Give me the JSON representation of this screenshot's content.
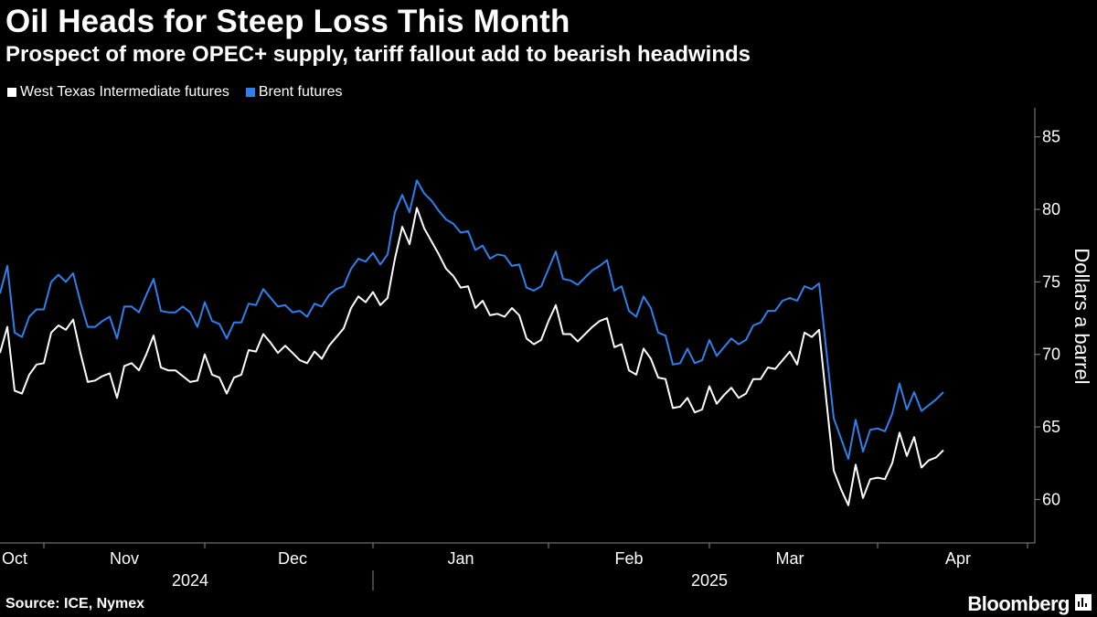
{
  "header": {
    "title": "Oil Heads for Steep Loss This Month",
    "subtitle": "Prospect of more OPEC+ supply, tariff fallout add to bearish headwinds"
  },
  "footer": {
    "source": "Source: ICE, Nymex",
    "brand": "Bloomberg"
  },
  "colors": {
    "background": "#000000",
    "wti": "#ffffff",
    "brent": "#2f80ed",
    "axis": "#888888"
  },
  "chart_data": {
    "type": "line",
    "title": "Oil Heads for Steep Loss This Month",
    "subtitle": "Prospect of more OPEC+ supply, tariff fallout add to bearish headwinds",
    "ylabel": "Dollars a barrel",
    "xlabel": "",
    "ylim": [
      57,
      87
    ],
    "yticks": [
      60,
      65,
      70,
      75,
      80,
      85
    ],
    "ytick_labels": [
      "60",
      "65",
      "70",
      "75",
      "80",
      "85"
    ],
    "y_axis_position": "right",
    "grid": false,
    "legend": "top-left",
    "xlim": [
      0,
      139
    ],
    "month_labels": [
      {
        "label": "Oct",
        "x": 2
      },
      {
        "label": "Nov",
        "x": 17
      },
      {
        "label": "Dec",
        "x": 40
      },
      {
        "label": "Jan",
        "x": 63
      },
      {
        "label": "Feb",
        "x": 86
      },
      {
        "label": "Mar",
        "x": 108
      },
      {
        "label": "Apr",
        "x": 131
      }
    ],
    "month_ticks": [
      6,
      28,
      51,
      75,
      97,
      120,
      141
    ],
    "year_labels": [
      {
        "label": "2024",
        "x": 26
      },
      {
        "label": "2025",
        "x": 97
      }
    ],
    "year_divider": 51,
    "series": [
      {
        "name": "West Texas Intermediate futures",
        "color": "#ffffff",
        "values": [
          70.1,
          71.9,
          67.5,
          67.3,
          68.6,
          69.3,
          69.4,
          71.5,
          72.0,
          71.7,
          72.4,
          70.1,
          68.1,
          68.2,
          68.5,
          68.7,
          67.0,
          69.2,
          69.4,
          68.9,
          70.0,
          71.3,
          69.1,
          68.9,
          68.9,
          68.5,
          68.1,
          68.2,
          70.0,
          68.6,
          68.4,
          67.3,
          68.4,
          68.6,
          70.3,
          70.2,
          71.4,
          70.8,
          70.1,
          70.6,
          70.1,
          69.6,
          69.4,
          70.2,
          69.7,
          70.6,
          71.2,
          71.8,
          73.2,
          74.0,
          73.6,
          74.3,
          73.4,
          73.9,
          76.6,
          78.8,
          77.6,
          80.1,
          78.7,
          77.8,
          76.9,
          75.9,
          75.4,
          74.6,
          74.7,
          73.2,
          73.7,
          72.7,
          72.8,
          72.6,
          73.2,
          72.7,
          71.1,
          70.7,
          71.0,
          72.3,
          73.4,
          71.4,
          71.4,
          70.9,
          71.4,
          71.9,
          72.3,
          72.5,
          70.5,
          70.7,
          68.9,
          68.6,
          70.4,
          69.7,
          68.4,
          68.3,
          66.3,
          66.4,
          67.0,
          66.0,
          66.2,
          67.8,
          66.6,
          67.2,
          67.7,
          67.0,
          67.3,
          68.3,
          68.3,
          69.1,
          69.0,
          69.6,
          70.2,
          69.3,
          71.5,
          71.2,
          71.7,
          66.8,
          62.0,
          60.7,
          59.6,
          62.4,
          60.1,
          61.4,
          61.5,
          61.4,
          62.5,
          64.6,
          63.0,
          64.3,
          62.2,
          62.7,
          62.9,
          63.4
        ]
      },
      {
        "name": "Brent futures",
        "color": "#2f80ed",
        "values": [
          74.2,
          76.1,
          71.5,
          71.2,
          72.6,
          73.1,
          73.1,
          75.0,
          75.5,
          75.0,
          75.6,
          73.6,
          71.9,
          71.9,
          72.3,
          72.6,
          71.1,
          73.3,
          73.3,
          72.9,
          74.1,
          75.2,
          73.0,
          72.9,
          72.9,
          73.3,
          72.9,
          71.9,
          73.6,
          72.3,
          72.1,
          71.1,
          72.2,
          72.2,
          73.5,
          73.4,
          74.5,
          73.9,
          73.3,
          73.4,
          72.9,
          73.0,
          72.6,
          73.5,
          73.3,
          74.1,
          74.5,
          74.7,
          75.9,
          76.6,
          76.4,
          77.0,
          76.2,
          76.9,
          79.8,
          81.0,
          79.8,
          82.0,
          81.1,
          80.6,
          79.9,
          79.3,
          79.0,
          78.4,
          78.5,
          77.2,
          77.5,
          76.6,
          76.9,
          76.8,
          76.1,
          76.2,
          74.6,
          74.4,
          74.7,
          75.9,
          77.1,
          75.2,
          75.1,
          74.8,
          75.3,
          75.8,
          76.1,
          76.5,
          74.4,
          74.7,
          73.0,
          72.6,
          74.0,
          73.2,
          71.5,
          71.3,
          69.3,
          69.4,
          70.4,
          69.4,
          69.6,
          71.0,
          69.9,
          70.5,
          71.1,
          70.7,
          71.0,
          72.0,
          72.2,
          73.0,
          73.0,
          73.7,
          73.9,
          73.7,
          74.7,
          74.5,
          74.9,
          70.2,
          65.6,
          64.2,
          62.8,
          65.5,
          63.3,
          64.8,
          64.9,
          64.7,
          65.9,
          68.0,
          66.2,
          67.4,
          66.1,
          66.5,
          66.9,
          67.4
        ]
      }
    ]
  }
}
